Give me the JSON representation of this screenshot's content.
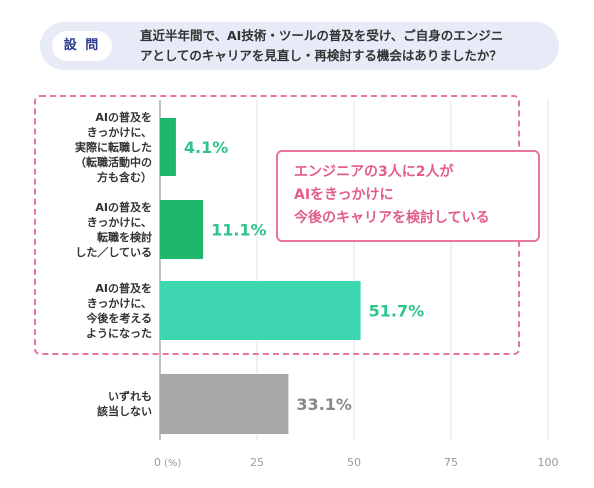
{
  "question": {
    "badge": "設 問",
    "line1": "直近半年間で、AI技術・ツールの普及を受け、ご自身のエンジニ",
    "line2": "アとしてのキャリアを見直し・再検討する機会はありましたか？"
  },
  "callout": {
    "line1": "エンジニアの3人に2人が",
    "line2": "AIをきっかけに",
    "line3": "今後のキャリアを検討している"
  },
  "colors": {
    "accent_pink": "#e8779b",
    "callout_text": "#e35d8a",
    "bar1": "#1db86b",
    "bar2": "#1db86b",
    "bar3": "#3ed6b0",
    "bar4": "#a8a8a8",
    "label_green": "#2ec48a",
    "label_gray": "#888888",
    "question_bg": "#e6ebf7",
    "badge_text": "#2b3a8f"
  },
  "chart_data": {
    "type": "bar",
    "orientation": "horizontal",
    "categories": [
      [
        "AIの普及を",
        "きっかけに、",
        "実際に転職した",
        "（転職活動中の",
        "方も含む）"
      ],
      [
        "AIの普及を",
        "きっかけに、",
        "転職を検討",
        "した／している"
      ],
      [
        "AIの普及を",
        "きっかけに、",
        "今後を考える",
        "ようになった"
      ],
      [
        "いずれも",
        "該当しない"
      ]
    ],
    "values": [
      4.1,
      11.1,
      51.7,
      33.1
    ],
    "value_labels": [
      "4.1%",
      "11.1%",
      "51.7%",
      "33.1%"
    ],
    "xlim": [
      0,
      100
    ],
    "xticks": [
      "0",
      "25",
      "50",
      "75",
      "100"
    ],
    "x_unit_label": "(%)",
    "grid": true
  }
}
